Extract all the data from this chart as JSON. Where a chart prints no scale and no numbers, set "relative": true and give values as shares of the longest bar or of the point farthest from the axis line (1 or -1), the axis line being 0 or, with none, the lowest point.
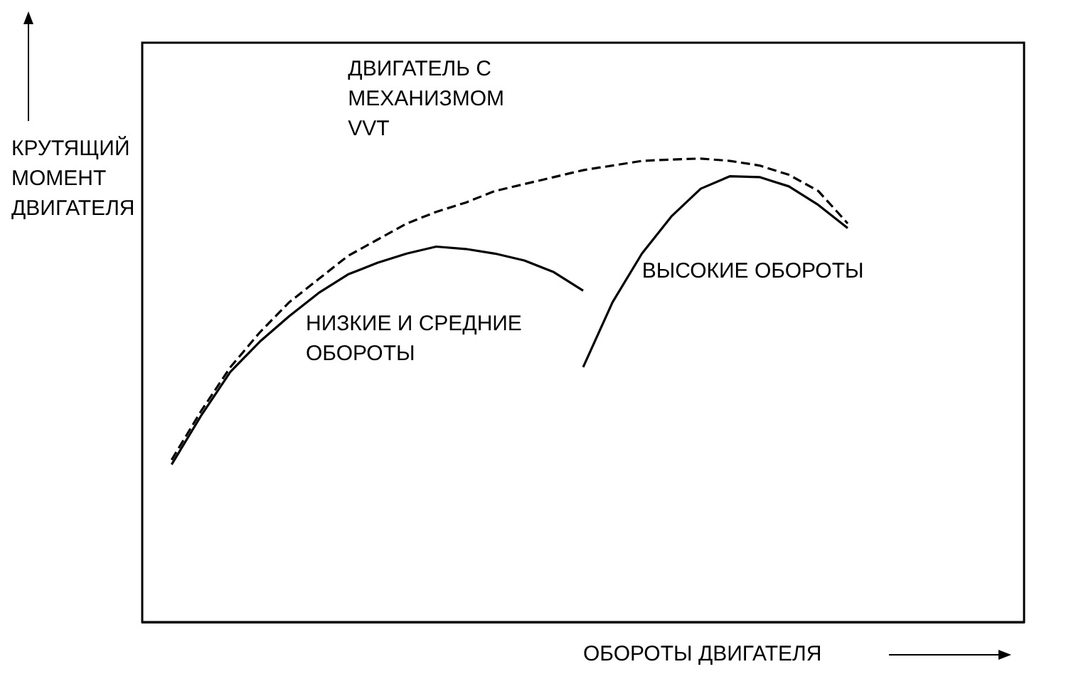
{
  "chart_data": {
    "type": "line",
    "relative": true,
    "xlabel": "ОБОРОТЫ ДВИГАТЕЛЯ",
    "ylabel": "КРУТЯЩИЙ МОМЕНТ ДВИГАТЕЛЯ",
    "grid": false,
    "legend": false,
    "marker": "none",
    "categories": [
      null,
      null,
      null,
      null,
      null,
      null,
      null,
      null,
      null,
      null,
      null,
      null,
      null,
      null,
      null,
      null,
      null,
      null,
      null,
      null,
      null,
      null,
      null,
      null,
      null,
      null,
      null,
      null,
      null,
      null,
      null
    ],
    "series": [
      {
        "name": "ДВИГАТЕЛЬ С МЕХАНИЗМОМ VVT",
        "color": "#000000",
        "line_style": "dashed",
        "values": [
          null,
          0.35,
          0.455,
          0.55,
          0.625,
          0.69,
          0.74,
          0.79,
          0.825,
          0.86,
          0.885,
          0.905,
          0.93,
          0.945,
          0.96,
          0.975,
          0.985,
          0.995,
          0.998,
          1.0,
          0.995,
          0.985,
          0.965,
          0.93,
          0.86,
          null,
          null,
          null,
          null,
          null,
          null
        ]
      },
      {
        "name": "НИЗКИЕ И СРЕДНИЕ ОБОРОТЫ",
        "color": "#000000",
        "line_style": "solid",
        "values": [
          null,
          0.34,
          0.445,
          0.54,
          0.605,
          0.66,
          0.71,
          0.75,
          0.775,
          0.795,
          0.81,
          0.805,
          0.795,
          0.78,
          0.755,
          0.715,
          null,
          null,
          null,
          null,
          null,
          null,
          null,
          null,
          null,
          null,
          null,
          null,
          null,
          null,
          null
        ]
      },
      {
        "name": "ВЫСОКИЕ ОБОРОТЫ",
        "color": "#000000",
        "line_style": "solid",
        "values": [
          null,
          null,
          null,
          null,
          null,
          null,
          null,
          null,
          null,
          null,
          null,
          null,
          null,
          null,
          null,
          0.55,
          0.69,
          0.795,
          0.875,
          0.935,
          0.962,
          0.96,
          0.94,
          0.9,
          0.85,
          null,
          null,
          null,
          null,
          null,
          null
        ]
      }
    ]
  }
}
